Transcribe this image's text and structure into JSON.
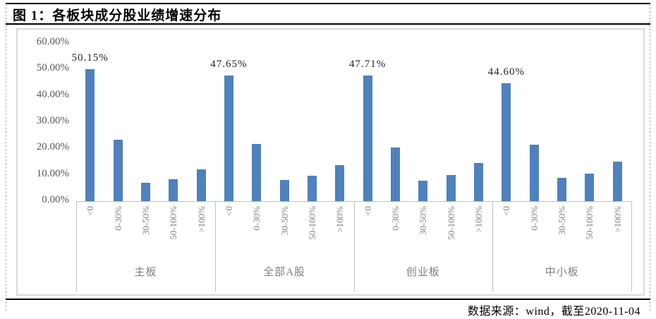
{
  "header": {
    "title": "图 1：各板块成分股业绩增速分布"
  },
  "footer": {
    "source": "数据来源：wind，截至2020-11-04"
  },
  "chart_data": {
    "type": "bar",
    "title": "各板块成分股业绩增速分布",
    "categories": [
      "<0",
      "0-30%",
      "30-50%",
      "50-100%",
      ">100%"
    ],
    "groups": [
      {
        "name": "主板",
        "data_label": "50.15%",
        "values": [
          50.15,
          23.3,
          7.0,
          8.2,
          12.1
        ]
      },
      {
        "name": "全部A股",
        "data_label": "47.65%",
        "values": [
          47.65,
          21.7,
          8.0,
          9.7,
          13.7
        ]
      },
      {
        "name": "创业板",
        "data_label": "47.71%",
        "values": [
          47.71,
          20.4,
          7.8,
          9.9,
          14.5
        ]
      },
      {
        "name": "中小板",
        "data_label": "44.60%",
        "values": [
          44.6,
          21.5,
          8.8,
          10.5,
          14.9
        ]
      }
    ],
    "y_ticks": [
      "60.00%",
      "50.00%",
      "40.00%",
      "30.00%",
      "20.00%",
      "10.00%",
      "0.00%"
    ],
    "ylabel": "",
    "xlabel": "",
    "ylim": [
      0,
      60
    ],
    "grid": false,
    "legend": "none",
    "bar_color": "#4F81BD",
    "axis_color": "#bfbfbf"
  }
}
